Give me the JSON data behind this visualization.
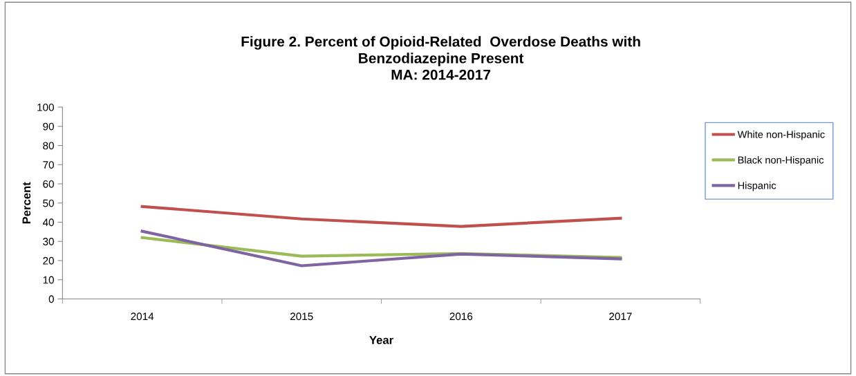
{
  "chart_data": {
    "type": "line",
    "title": "Figure 2. Percent of Opioid-Related  Overdose Deaths with\nBenzodiazepine Present\nMA: 2014-2017",
    "xlabel": "Year",
    "ylabel": "Percent",
    "categories": [
      "2014",
      "2015",
      "2016",
      "2017"
    ],
    "series": [
      {
        "name": "White non-Hispanic",
        "color": "#c0504d",
        "values": [
          48.2,
          41.7,
          37.8,
          42.1
        ]
      },
      {
        "name": "Black non-Hispanic",
        "color": "#9bbb59",
        "values": [
          32,
          22.3,
          23.7,
          21.6
        ]
      },
      {
        "name": "Hispanic",
        "color": "#8064a2",
        "values": [
          35.3,
          17.3,
          23.4,
          20.9
        ]
      }
    ],
    "ylim": [
      0,
      100
    ],
    "yticks": [
      0,
      10,
      20,
      30,
      40,
      50,
      60,
      70,
      80,
      90,
      100
    ],
    "grid": false,
    "legend": "right",
    "marker": "none",
    "line_style": "solid"
  }
}
